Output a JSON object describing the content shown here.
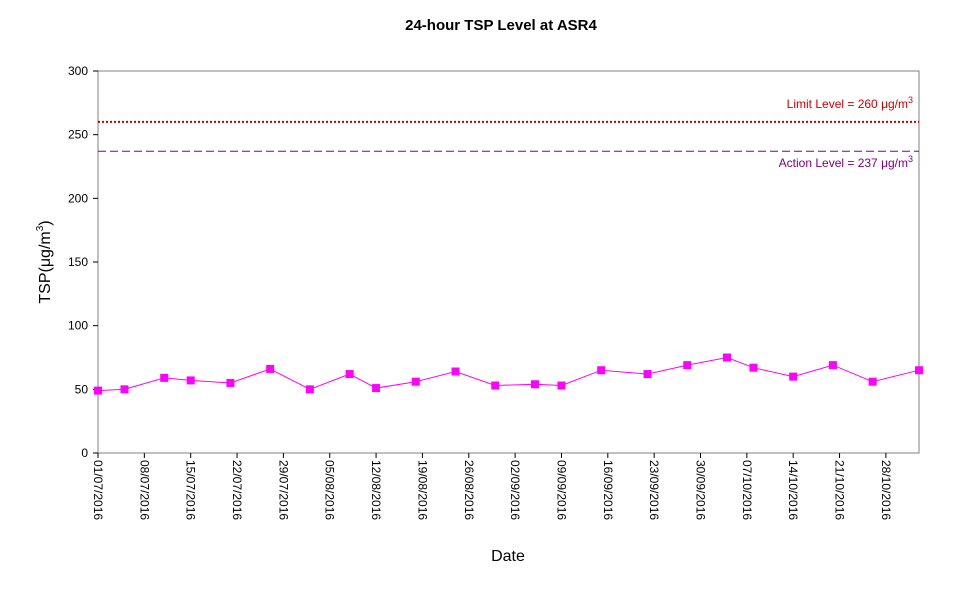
{
  "chart_data": {
    "type": "line",
    "title": "24-hour TSP Level at ASR4",
    "xlabel": "Date",
    "ylabel": "TSP(μg/m³)",
    "ylabel_parts": {
      "main": "TSP(",
      "unit": "μg/m",
      "sup": "3",
      "close": ")"
    },
    "ylim": [
      0,
      300
    ],
    "yticks": [
      0,
      50,
      100,
      150,
      200,
      250,
      300
    ],
    "x_start": "01/07/2016",
    "x_end": "02/11/2016",
    "xticks": [
      "01/07/2016",
      "08/07/2016",
      "15/07/2016",
      "22/07/2016",
      "29/07/2016",
      "05/08/2016",
      "12/08/2016",
      "19/08/2016",
      "26/08/2016",
      "02/09/2016",
      "09/09/2016",
      "16/09/2016",
      "23/09/2016",
      "30/09/2016",
      "07/10/2016",
      "14/10/2016",
      "21/10/2016",
      "28/10/2016"
    ],
    "grid": false,
    "series": [
      {
        "color": "#ff00ff",
        "marker": "square",
        "points": [
          {
            "x": "01/07/2016",
            "y": 49
          },
          {
            "x": "05/07/2016",
            "y": 50
          },
          {
            "x": "11/07/2016",
            "y": 59
          },
          {
            "x": "15/07/2016",
            "y": 57
          },
          {
            "x": "21/07/2016",
            "y": 55
          },
          {
            "x": "27/07/2016",
            "y": 66
          },
          {
            "x": "02/08/2016",
            "y": 50
          },
          {
            "x": "08/08/2016",
            "y": 62
          },
          {
            "x": "12/08/2016",
            "y": 51
          },
          {
            "x": "18/08/2016",
            "y": 56
          },
          {
            "x": "24/08/2016",
            "y": 64
          },
          {
            "x": "30/08/2016",
            "y": 53
          },
          {
            "x": "05/09/2016",
            "y": 54
          },
          {
            "x": "09/09/2016",
            "y": 53
          },
          {
            "x": "15/09/2016",
            "y": 65
          },
          {
            "x": "22/09/2016",
            "y": 62
          },
          {
            "x": "28/09/2016",
            "y": 69
          },
          {
            "x": "04/10/2016",
            "y": 75
          },
          {
            "x": "08/10/2016",
            "y": 67
          },
          {
            "x": "14/10/2016",
            "y": 60
          },
          {
            "x": "20/10/2016",
            "y": 69
          },
          {
            "x": "26/10/2016",
            "y": 56
          },
          {
            "x": "02/11/2016",
            "y": 65
          }
        ]
      }
    ],
    "reference_lines": [
      {
        "value": 260,
        "color": "#cc0000",
        "style": "dotted",
        "label_main": "Limit Level = 260 ",
        "label_unit": "μg/m",
        "label_sup": "3",
        "label_position": "above-right"
      },
      {
        "value": 237,
        "color": "#800080",
        "style": "dashed",
        "label_main": "Action Level = 237 ",
        "label_unit": "μg/m",
        "label_sup": "3",
        "label_position": "below-right"
      }
    ]
  }
}
